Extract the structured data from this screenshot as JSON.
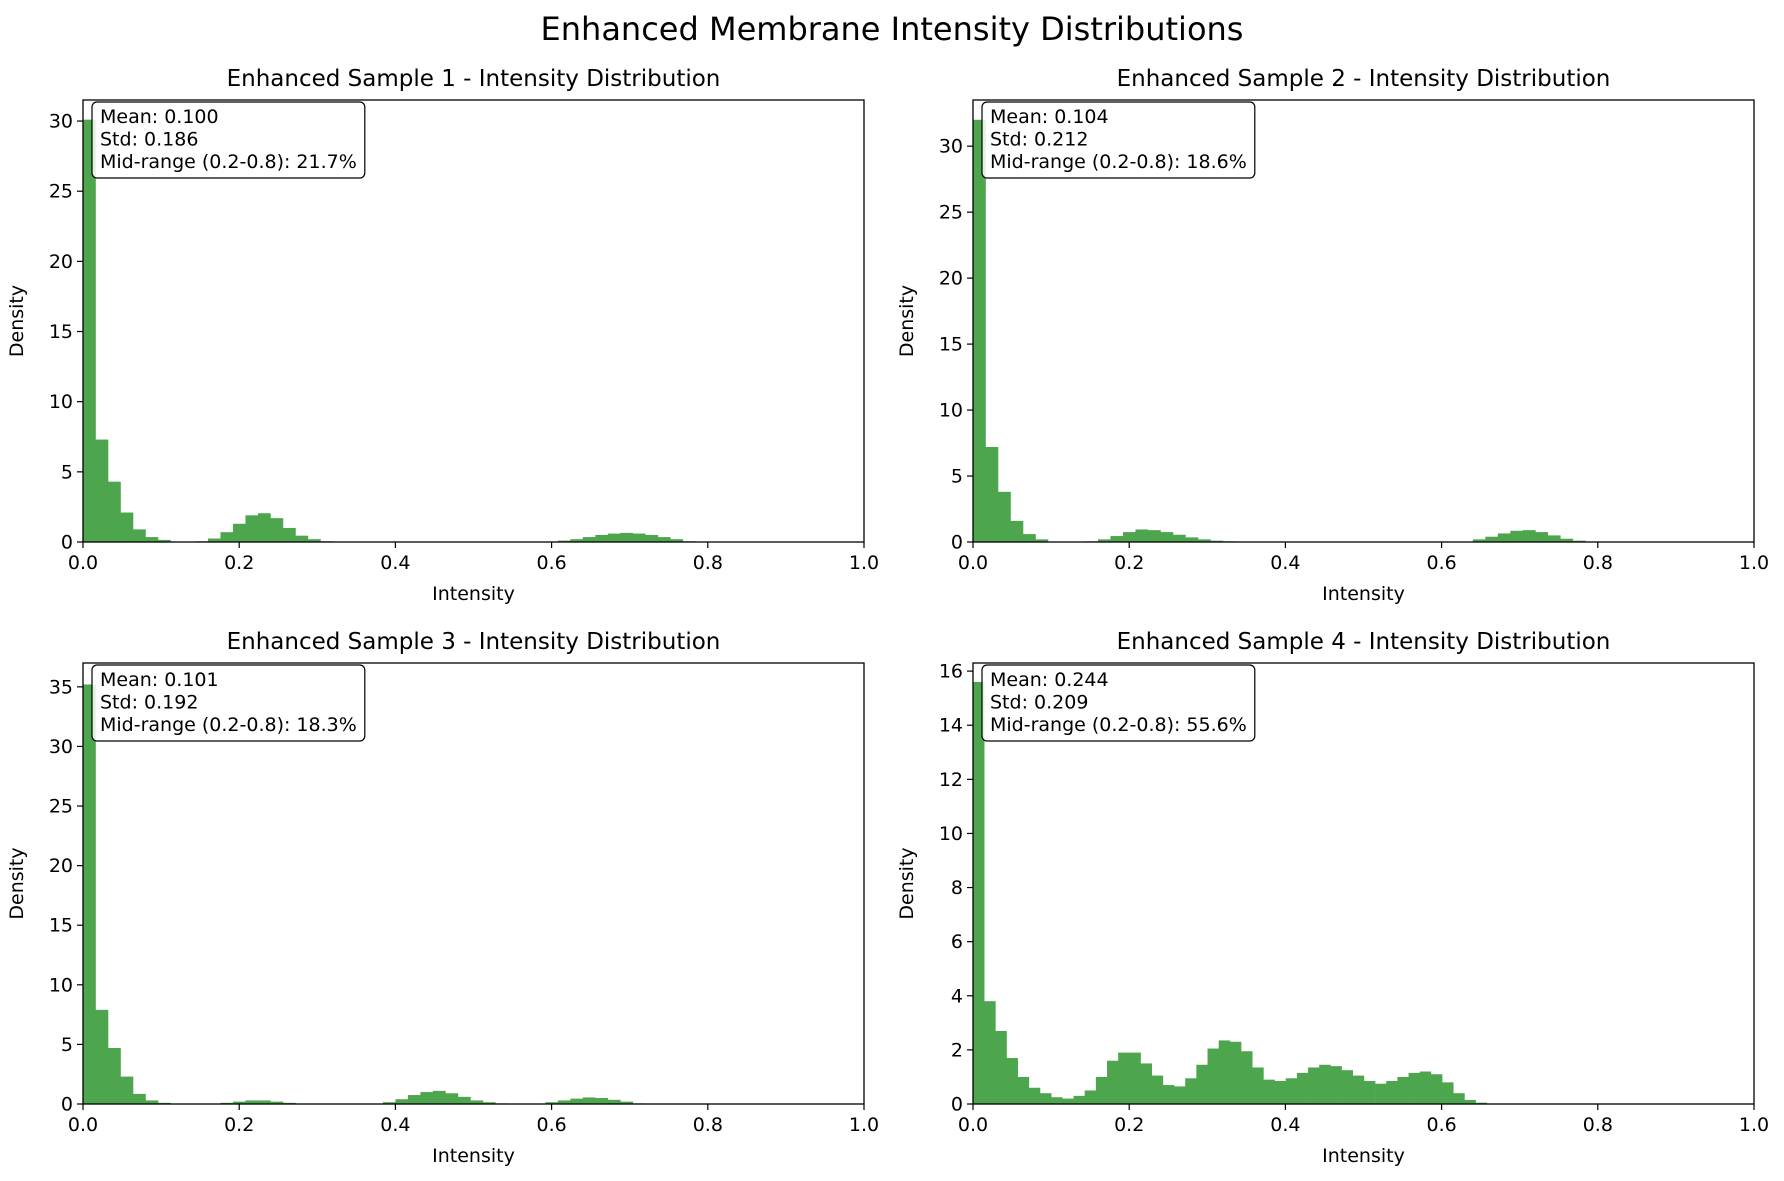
{
  "figure_title": "Enhanced Membrane Intensity Distributions",
  "bar_color": "#4da64d",
  "chart_data": [
    {
      "type": "bar",
      "title": "Enhanced Sample 1 - Intensity Distribution",
      "xlabel": "Intensity",
      "ylabel": "Density",
      "xlim": [
        0,
        1
      ],
      "ylim": [
        0,
        31.5
      ],
      "xticks": [
        0.0,
        0.2,
        0.4,
        0.6,
        0.8,
        1.0
      ],
      "xtick_labels": [
        "0.0",
        "0.2",
        "0.4",
        "0.6",
        "0.8",
        "1.0"
      ],
      "yticks": [
        0,
        5,
        10,
        15,
        20,
        25,
        30
      ],
      "ytick_labels": [
        "0",
        "5",
        "10",
        "15",
        "20",
        "25",
        "30"
      ],
      "bin_width": 0.016,
      "bin_start": 0.0,
      "values": [
        30.1,
        7.3,
        4.3,
        2.1,
        0.9,
        0.35,
        0.15,
        0,
        0,
        0.05,
        0.25,
        0.7,
        1.3,
        1.9,
        2.05,
        1.7,
        1.0,
        0.45,
        0.2,
        0.05,
        0,
        0,
        0,
        0,
        0,
        0,
        0,
        0,
        0,
        0,
        0,
        0,
        0,
        0,
        0,
        0,
        0,
        0,
        0.1,
        0.2,
        0.35,
        0.5,
        0.6,
        0.65,
        0.6,
        0.5,
        0.35,
        0.2,
        0.05
      ],
      "stats": {
        "mean": "Mean: 0.100",
        "std": "Std: 0.186",
        "mid": "Mid-range (0.2-0.8): 21.7%"
      }
    },
    {
      "type": "bar",
      "title": "Enhanced Sample 2 - Intensity Distribution",
      "xlabel": "Intensity",
      "ylabel": "Density",
      "xlim": [
        0,
        1
      ],
      "ylim": [
        0,
        33.5
      ],
      "xticks": [
        0.0,
        0.2,
        0.4,
        0.6,
        0.8,
        1.0
      ],
      "xtick_labels": [
        "0.0",
        "0.2",
        "0.4",
        "0.6",
        "0.8",
        "1.0"
      ],
      "yticks": [
        0,
        5,
        10,
        15,
        20,
        25,
        30
      ],
      "ytick_labels": [
        "0",
        "5",
        "10",
        "15",
        "20",
        "25",
        "30"
      ],
      "bin_width": 0.016,
      "bin_start": 0.0,
      "values": [
        32.0,
        7.2,
        3.8,
        1.6,
        0.6,
        0.2,
        0,
        0,
        0,
        0.05,
        0.2,
        0.45,
        0.75,
        0.95,
        0.9,
        0.75,
        0.55,
        0.35,
        0.2,
        0.1,
        0.05,
        0,
        0,
        0,
        0,
        0,
        0,
        0,
        0,
        0,
        0,
        0,
        0,
        0,
        0,
        0,
        0,
        0,
        0,
        0,
        0.2,
        0.4,
        0.65,
        0.85,
        0.9,
        0.75,
        0.5,
        0.25,
        0.1
      ],
      "stats": {
        "mean": "Mean: 0.104",
        "std": "Std: 0.212",
        "mid": "Mid-range (0.2-0.8): 18.6%"
      }
    },
    {
      "type": "bar",
      "title": "Enhanced Sample 3 - Intensity Distribution",
      "xlabel": "Intensity",
      "ylabel": "Density",
      "xlim": [
        0,
        1
      ],
      "ylim": [
        0,
        37
      ],
      "xticks": [
        0.0,
        0.2,
        0.4,
        0.6,
        0.8,
        1.0
      ],
      "xtick_labels": [
        "0.0",
        "0.2",
        "0.4",
        "0.6",
        "0.8",
        "1.0"
      ],
      "yticks": [
        0,
        5,
        10,
        15,
        20,
        25,
        30,
        35
      ],
      "ytick_labels": [
        "0",
        "5",
        "10",
        "15",
        "20",
        "25",
        "30",
        "35"
      ],
      "bin_width": 0.016,
      "bin_start": 0.0,
      "values": [
        35.2,
        7.9,
        4.7,
        2.3,
        0.85,
        0.3,
        0.1,
        0,
        0,
        0,
        0,
        0.1,
        0.2,
        0.3,
        0.3,
        0.2,
        0.1,
        0,
        0,
        0,
        0,
        0,
        0,
        0,
        0.15,
        0.4,
        0.75,
        1.0,
        1.1,
        0.9,
        0.6,
        0.3,
        0.15,
        0.05,
        0,
        0,
        0,
        0.15,
        0.3,
        0.45,
        0.55,
        0.5,
        0.35,
        0.2,
        0.05
      ],
      "stats": {
        "mean": "Mean: 0.101",
        "std": "Std: 0.192",
        "mid": "Mid-range (0.2-0.8): 18.3%"
      }
    },
    {
      "type": "bar",
      "title": "Enhanced Sample 4 - Intensity Distribution",
      "xlabel": "Intensity",
      "ylabel": "Density",
      "xlim": [
        0,
        1
      ],
      "ylim": [
        0,
        16.3
      ],
      "xticks": [
        0.0,
        0.2,
        0.4,
        0.6,
        0.8,
        1.0
      ],
      "xtick_labels": [
        "0.0",
        "0.2",
        "0.4",
        "0.6",
        "0.8",
        "1.0"
      ],
      "yticks": [
        0,
        2,
        4,
        6,
        8,
        10,
        12,
        14,
        16
      ],
      "ytick_labels": [
        "0",
        "2",
        "4",
        "6",
        "8",
        "10",
        "12",
        "14",
        "16"
      ],
      "bin_width": 0.0143,
      "bin_start": 0.0,
      "values": [
        15.6,
        3.8,
        2.7,
        1.7,
        1.0,
        0.6,
        0.4,
        0.25,
        0.2,
        0.3,
        0.5,
        1.0,
        1.6,
        1.9,
        1.9,
        1.5,
        1.05,
        0.7,
        0.65,
        0.95,
        1.45,
        2.05,
        2.35,
        2.3,
        1.95,
        1.35,
        0.9,
        0.85,
        0.95,
        1.15,
        1.35,
        1.45,
        1.4,
        1.25,
        1.05,
        0.85,
        0.75,
        0.85,
        1.0,
        1.15,
        1.2,
        1.1,
        0.8,
        0.4,
        0.15,
        0.05
      ],
      "stats": {
        "mean": "Mean: 0.244",
        "std": "Std: 0.209",
        "mid": "Mid-range (0.2-0.8): 55.6%"
      }
    }
  ]
}
